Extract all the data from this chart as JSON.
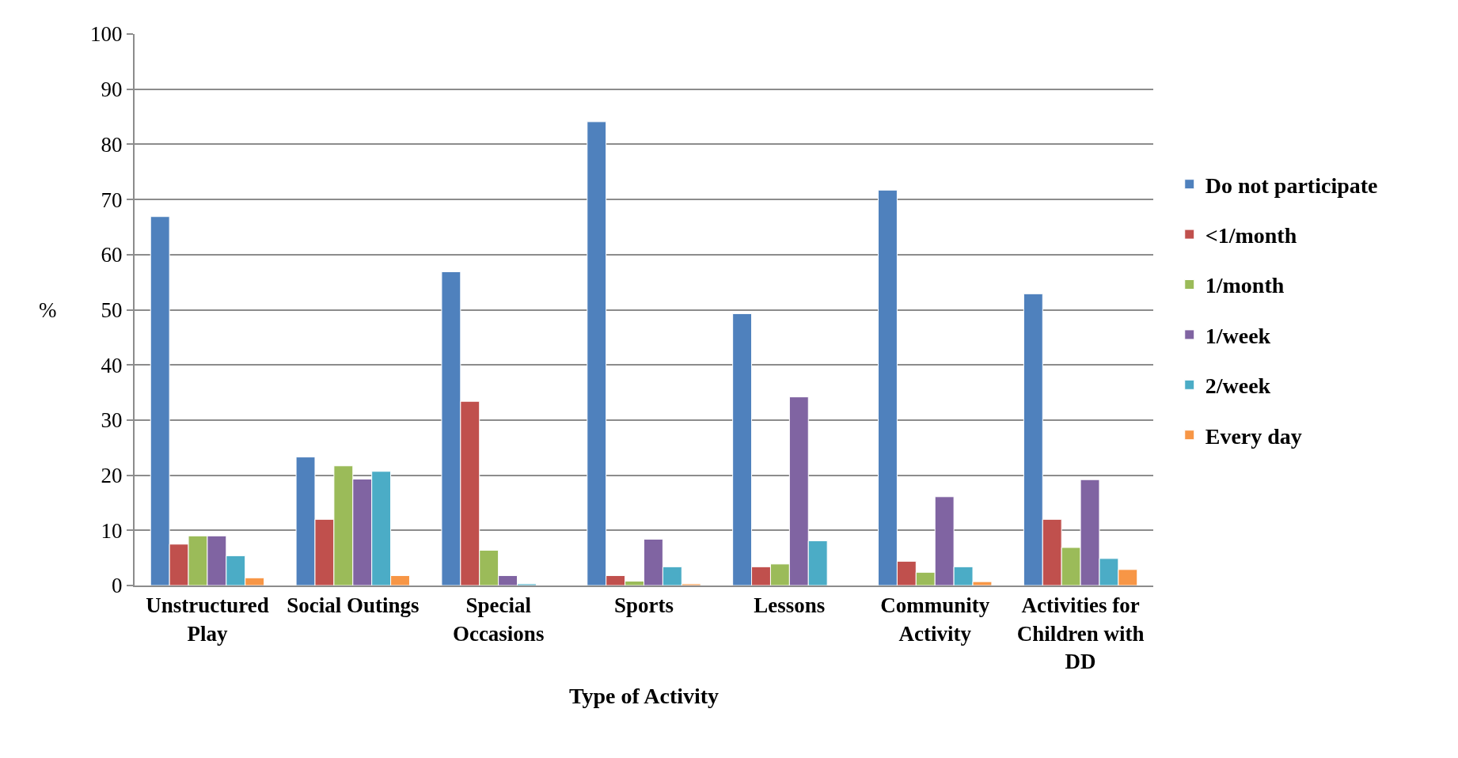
{
  "chart_data": {
    "type": "bar",
    "xlabel": "Type of Activity",
    "ylabel": "%",
    "categories": [
      "Unstructured Play",
      "Social Outings",
      "Special Occasions",
      "Sports",
      "Lessons",
      "Community Activity",
      "Activities for Children with DD"
    ],
    "series": [
      {
        "name": "Do not participate",
        "color": "#4f81bd",
        "values": [
          66.9,
          23.3,
          56.9,
          84.1,
          49.3,
          71.7,
          52.9
        ]
      },
      {
        "name": "<1/month",
        "color": "#c0504d",
        "values": [
          7.5,
          12,
          33.4,
          1.8,
          3.4,
          4.4,
          12
        ]
      },
      {
        "name": "1/month",
        "color": "#9bbb59",
        "values": [
          9,
          21.7,
          6.4,
          0.8,
          3.9,
          2.4,
          6.9
        ]
      },
      {
        "name": "1/week",
        "color": "#8064a2",
        "values": [
          9,
          19.3,
          1.8,
          8.4,
          34.2,
          16.1,
          19.2
        ]
      },
      {
        "name": "2/week",
        "color": "#4bacc6",
        "values": [
          5.4,
          20.7,
          0.3,
          3.4,
          8.1,
          3.4,
          4.9
        ]
      },
      {
        "name": "Every day",
        "color": "#f79646",
        "values": [
          1.4,
          1.8,
          null,
          0.3,
          null,
          0.7,
          2.9
        ]
      }
    ],
    "ylim": [
      0,
      100
    ],
    "yticks": [
      0,
      10,
      20,
      30,
      40,
      50,
      60,
      70,
      80,
      90,
      100
    ],
    "grid": "y",
    "legend": "right"
  }
}
